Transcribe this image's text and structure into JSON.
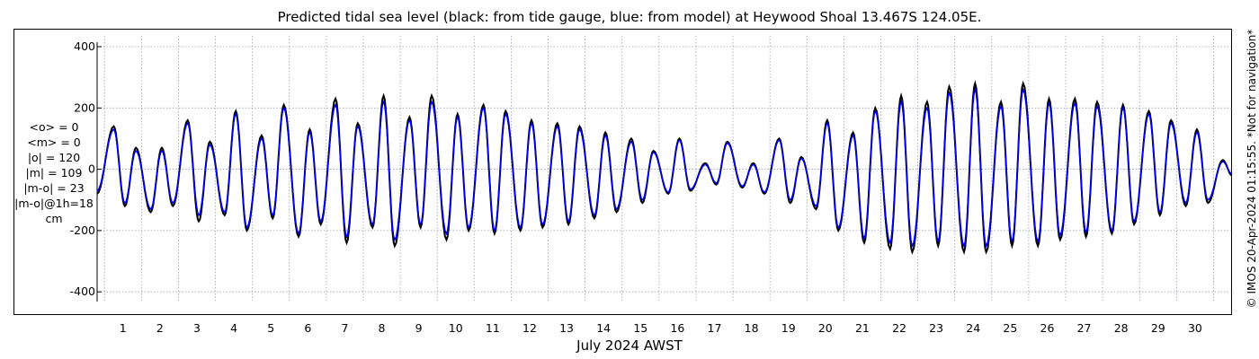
{
  "title": "Predicted tidal sea level (black: from tide gauge, blue: from model) at Heywood Shoal 13.467S 124.05E.",
  "xlabel": "July 2024 AWST",
  "copyright": "© IMOS 20-Apr-2024 01:15:55. *Not for navigation*",
  "stats": [
    "<o> = 0",
    "<m> = 0",
    "|o| = 120",
    "|m| = 109",
    "|m-o| = 23",
    "|m-o|@1h=18",
    "cm"
  ],
  "colors": {
    "observed": "#000000",
    "model": "#0000ee",
    "grid": "#9aa0b4"
  },
  "chart_data": {
    "type": "line",
    "xlabel": "July 2024 AWST",
    "ylabel": "",
    "xlim": [
      0.3,
      31.0
    ],
    "ylim": [
      -420,
      400
    ],
    "yticks": [
      400,
      200,
      0,
      -200,
      -400
    ],
    "yticklabels": [
      "400",
      "200",
      "0",
      "-200",
      "-400"
    ],
    "xticks": [
      1,
      2,
      3,
      4,
      5,
      6,
      7,
      8,
      9,
      10,
      11,
      12,
      13,
      14,
      15,
      16,
      17,
      18,
      19,
      20,
      21,
      22,
      23,
      24,
      25,
      26,
      27,
      28,
      29,
      30
    ],
    "grid": true,
    "series": [
      {
        "name": "black: from tide gauge",
        "color": "#000000",
        "x": [
          0.3,
          0.75,
          1.05,
          1.35,
          1.75,
          2.05,
          2.35,
          2.75,
          3.05,
          3.35,
          3.75,
          4.05,
          4.35,
          4.75,
          5.05,
          5.35,
          5.75,
          6.05,
          6.35,
          6.75,
          7.05,
          7.35,
          7.75,
          8.05,
          8.35,
          8.75,
          9.05,
          9.35,
          9.75,
          10.05,
          10.35,
          10.75,
          11.05,
          11.35,
          11.75,
          12.05,
          12.35,
          12.75,
          13.05,
          13.35,
          13.75,
          14.05,
          14.35,
          14.75,
          15.05,
          15.35,
          15.75,
          16.05,
          16.35,
          16.75,
          17.05,
          17.35,
          17.75,
          18.05,
          18.35,
          18.75,
          19.05,
          19.35,
          19.75,
          20.05,
          20.35,
          20.75,
          21.05,
          21.35,
          21.75,
          22.05,
          22.35,
          22.75,
          23.05,
          23.35,
          23.75,
          24.05,
          24.35,
          24.75,
          25.05,
          25.35,
          25.75,
          26.05,
          26.35,
          26.75,
          27.05,
          27.35,
          27.75,
          28.05,
          28.35,
          28.75,
          29.05,
          29.35,
          29.75,
          30.05,
          30.35,
          30.75,
          31.0
        ],
        "y": [
          -80,
          140,
          -120,
          70,
          -140,
          70,
          -120,
          160,
          -170,
          90,
          -150,
          190,
          -200,
          110,
          -160,
          210,
          -220,
          130,
          -180,
          230,
          -240,
          150,
          -190,
          240,
          -250,
          170,
          -190,
          240,
          -230,
          180,
          -200,
          210,
          -210,
          190,
          -200,
          160,
          -190,
          150,
          -180,
          140,
          -160,
          120,
          -140,
          100,
          -110,
          60,
          -80,
          100,
          -70,
          20,
          -50,
          90,
          -60,
          20,
          -80,
          100,
          -110,
          40,
          -130,
          160,
          -200,
          120,
          -240,
          200,
          -260,
          240,
          -270,
          220,
          -250,
          270,
          -270,
          280,
          -270,
          220,
          -250,
          280,
          -250,
          230,
          -230,
          230,
          -220,
          220,
          -210,
          210,
          -180,
          190,
          -150,
          160,
          -120,
          130,
          -110,
          30,
          -20
        ]
      },
      {
        "name": "blue: from model",
        "color": "#0000ee",
        "x": [
          0.3,
          0.75,
          1.05,
          1.35,
          1.75,
          2.05,
          2.35,
          2.75,
          3.05,
          3.35,
          3.75,
          4.05,
          4.35,
          4.75,
          5.05,
          5.35,
          5.75,
          6.05,
          6.35,
          6.75,
          7.05,
          7.35,
          7.75,
          8.05,
          8.35,
          8.75,
          9.05,
          9.35,
          9.75,
          10.05,
          10.35,
          10.75,
          11.05,
          11.35,
          11.75,
          12.05,
          12.35,
          12.75,
          13.05,
          13.35,
          13.75,
          14.05,
          14.35,
          14.75,
          15.05,
          15.35,
          15.75,
          16.05,
          16.35,
          16.75,
          17.05,
          17.35,
          17.75,
          18.05,
          18.35,
          18.75,
          19.05,
          19.35,
          19.75,
          20.05,
          20.35,
          20.75,
          21.05,
          21.35,
          21.75,
          22.05,
          22.35,
          22.75,
          23.05,
          23.35,
          23.75,
          24.05,
          24.35,
          24.75,
          25.05,
          25.35,
          25.75,
          26.05,
          26.35,
          26.75,
          27.05,
          27.35,
          27.75,
          28.05,
          28.35,
          28.75,
          29.05,
          29.35,
          29.75,
          30.05,
          30.35,
          30.75,
          31.0
        ],
        "y": [
          -70,
          130,
          -110,
          60,
          -130,
          60,
          -110,
          150,
          -150,
          80,
          -140,
          180,
          -190,
          100,
          -150,
          200,
          -210,
          120,
          -170,
          210,
          -220,
          140,
          -180,
          220,
          -230,
          160,
          -180,
          220,
          -210,
          170,
          -190,
          200,
          -200,
          180,
          -190,
          150,
          -180,
          140,
          -170,
          130,
          -150,
          110,
          -130,
          90,
          -100,
          55,
          -75,
          95,
          -65,
          15,
          -45,
          85,
          -55,
          15,
          -75,
          95,
          -100,
          35,
          -120,
          150,
          -190,
          110,
          -225,
          190,
          -240,
          220,
          -250,
          200,
          -235,
          250,
          -250,
          260,
          -250,
          205,
          -235,
          260,
          -235,
          215,
          -215,
          215,
          -205,
          205,
          -200,
          200,
          -170,
          180,
          -140,
          150,
          -110,
          120,
          -100,
          25,
          -15
        ]
      }
    ]
  }
}
